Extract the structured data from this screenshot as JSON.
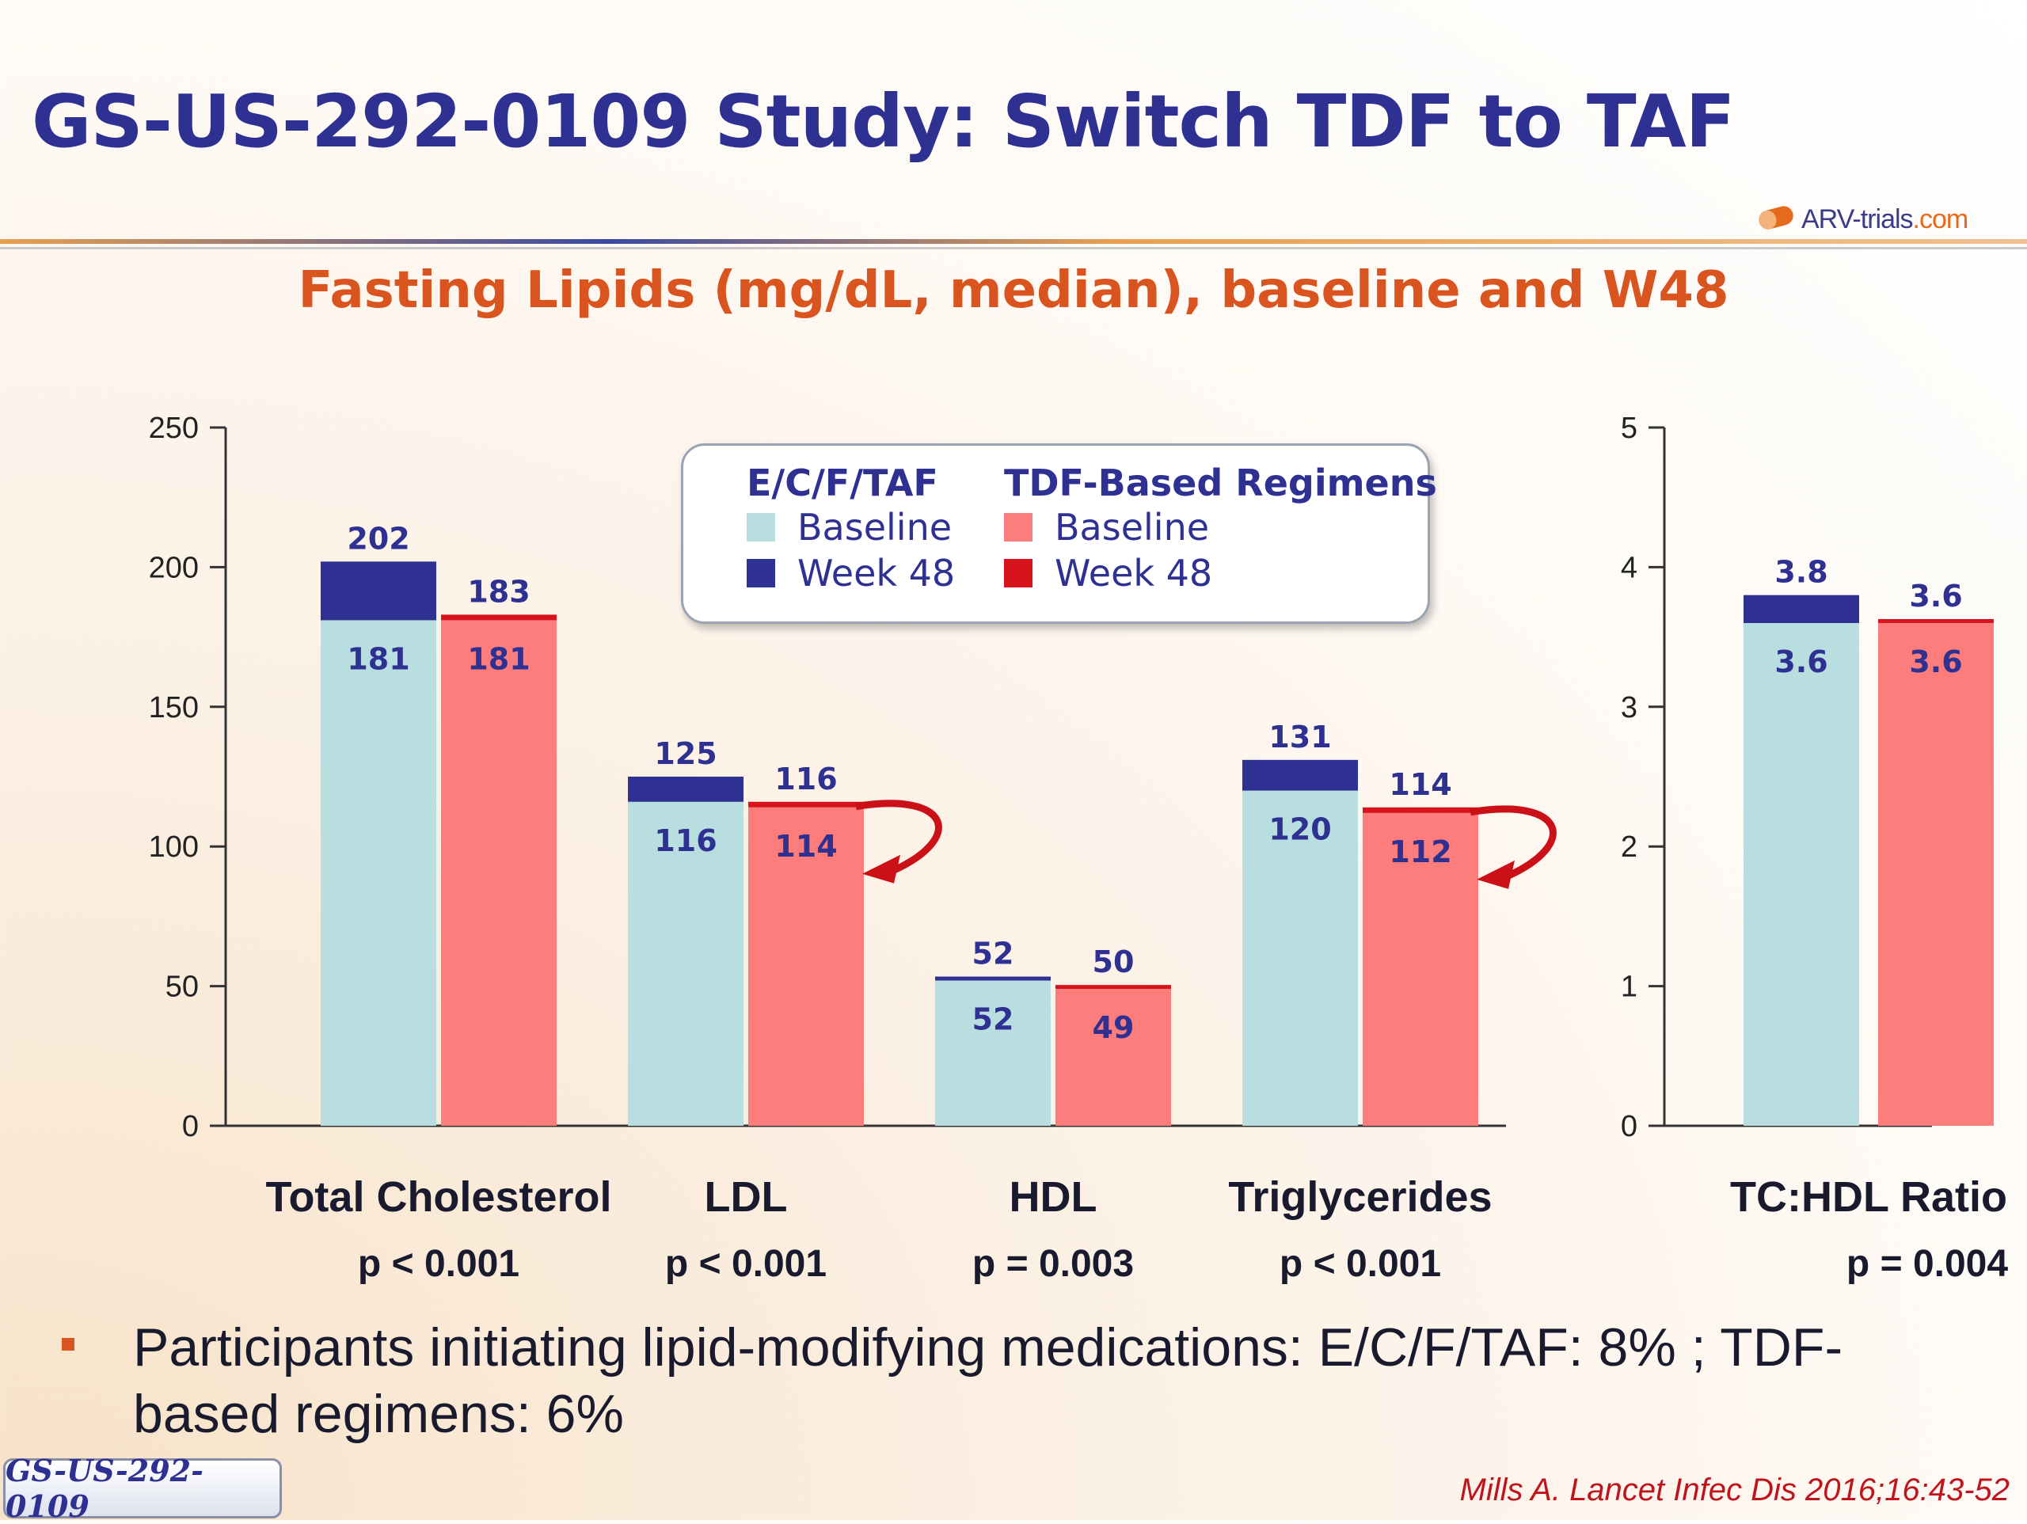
{
  "header": {
    "title": "GS-US-292-0109 Study: Switch TDF to TAF",
    "subtitle": "Fasting Lipids (mg/dL, median), baseline and W48",
    "logo_text": "ARV-trials",
    "logo_suffix": "com"
  },
  "legend": {
    "group_a": "E/C/F/TAF",
    "group_b": "TDF-Based Regimens",
    "baseline": "Baseline",
    "week48": "Week 48"
  },
  "colors": {
    "taf_baseline": "#b8dee0",
    "taf_week48": "#2e3192",
    "tdf_baseline": "#fd7c7c",
    "tdf_week48": "#d7141c",
    "label": "#2e3192",
    "arrow": "#cc1018"
  },
  "chart_data": [
    {
      "type": "bar",
      "categories": [
        "Total Cholesterol",
        "LDL",
        "HDL",
        "Triglycerides"
      ],
      "p_values": [
        "p < 0.001",
        "p < 0.001",
        "p = 0.003",
        "p < 0.001"
      ],
      "ylim": [
        0,
        250
      ],
      "yticks": [
        "0",
        "50",
        "100",
        "150",
        "200",
        "250"
      ],
      "series": [
        {
          "name": "E/C/F/TAF",
          "baseline": [
            181,
            116,
            52,
            120
          ],
          "week48": [
            202,
            125,
            52,
            131
          ]
        },
        {
          "name": "TDF-Based Regimens",
          "baseline": [
            181,
            114,
            49,
            112
          ],
          "week48": [
            183,
            116,
            50,
            114
          ]
        }
      ]
    },
    {
      "type": "bar",
      "categories": [
        "TC:HDL Ratio"
      ],
      "p_values": [
        "p = 0.004"
      ],
      "ylim": [
        0,
        5
      ],
      "yticks": [
        "0",
        "1",
        "2",
        "3",
        "4",
        "5"
      ],
      "series": [
        {
          "name": "E/C/F/TAF",
          "baseline": [
            3.6
          ],
          "week48": [
            3.8
          ]
        },
        {
          "name": "TDF-Based Regimens",
          "baseline": [
            3.6
          ],
          "week48": [
            3.6
          ]
        }
      ]
    }
  ],
  "footer": {
    "bullet_text": "Participants initiating lipid-modifying medications: E/C/F/TAF: 8% ; TDF-based regimens: 6%",
    "study_badge": "GS-US-292-0109",
    "citation": "Mills A. Lancet Infec Dis 2016;16:43-52"
  }
}
